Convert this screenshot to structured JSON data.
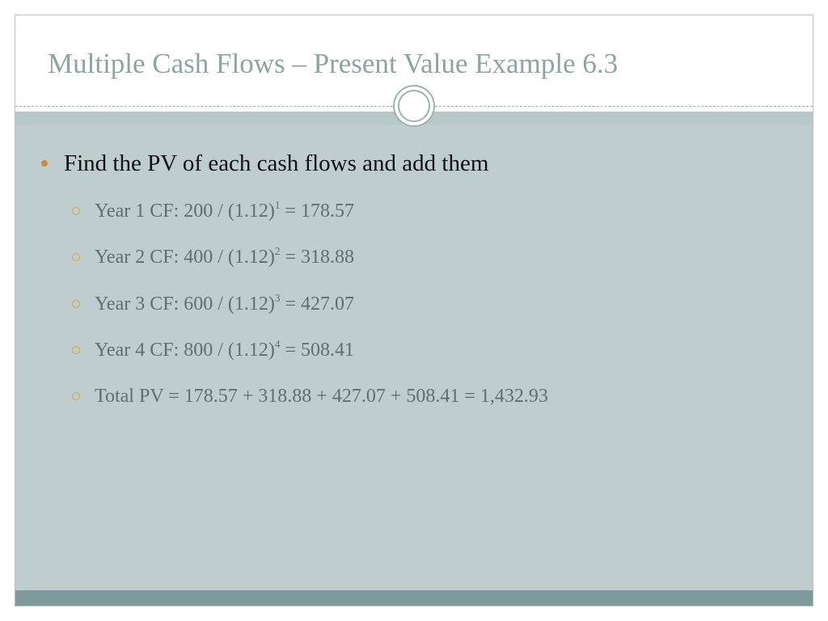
{
  "colors": {
    "title_color": "#8fa3a3",
    "body_bg": "#bfcdcf",
    "footer_bg": "#7f9a9a",
    "border": "#b6c4c4",
    "divider_stroke": "#9fb2b2",
    "l1_bullet": "#cf8b3d",
    "l2_bullet_border": "#d6a83f",
    "l1_text": "#111111",
    "l2_text": "#5e6e75"
  },
  "typography": {
    "font_family": "Georgia, serif",
    "title_fontsize": 35,
    "l1_fontsize": 29,
    "l2_fontsize": 24
  },
  "title": "Multiple Cash Flows – Present Value Example 6.3",
  "bullets": [
    {
      "level": 1,
      "text": "Find the PV of each cash flows and add them"
    }
  ],
  "sub_items": [
    {
      "prefix": "Year 1 CF: 200 / (1.12)",
      "exp": "1",
      "suffix": " = 178.57"
    },
    {
      "prefix": "Year 2 CF: 400 / (1.12)",
      "exp": "2",
      "suffix": " = 318.88"
    },
    {
      "prefix": "Year 3 CF: 600 / (1.12)",
      "exp": "3",
      "suffix": " = 427.07"
    },
    {
      "prefix": "Year 4 CF: 800 / (1.12)",
      "exp": "4",
      "suffix": " = 508.41"
    },
    {
      "prefix": "Total PV = 178.57 + 318.88 + 427.07 + 508.41 = 1,432.93",
      "exp": "",
      "suffix": ""
    }
  ]
}
